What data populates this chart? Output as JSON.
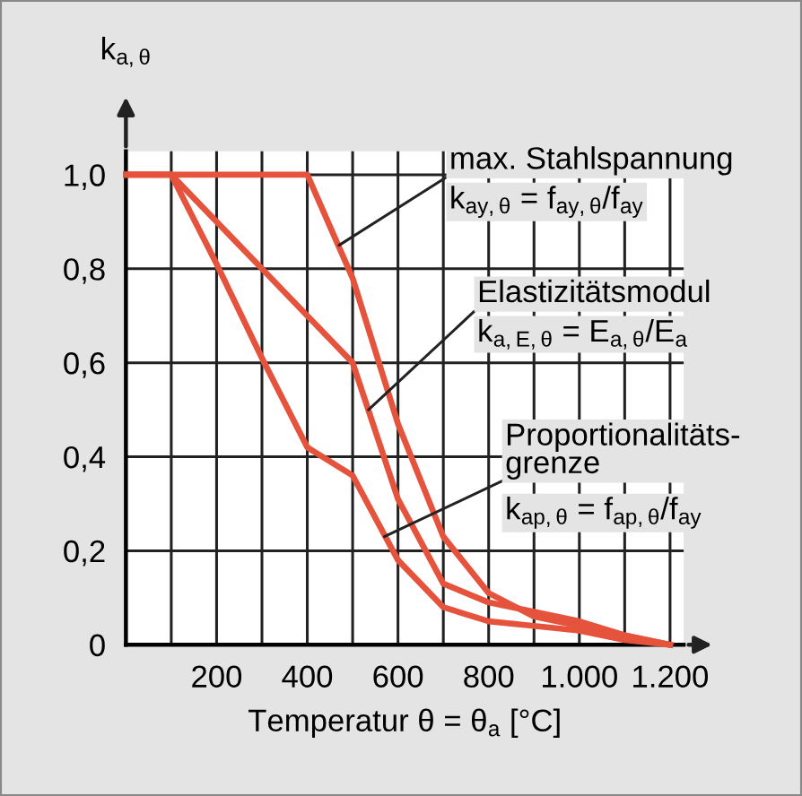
{
  "chart_data": {
    "type": "line",
    "ylabel": "k$_{a,θ}$",
    "xlabel": "Temperatur θ = θ$_{a}$ [°C]",
    "series": [
      {
        "color": "#e5533d",
        "x": [
          0,
          100,
          200,
          300,
          400,
          500,
          600,
          700,
          800,
          900,
          1000,
          1100,
          1200
        ],
        "values": [
          1,
          1,
          1,
          1,
          1,
          0.78,
          0.47,
          0.23,
          0.11,
          0.06,
          0.04,
          0.02,
          0
        ]
      },
      {
        "color": "#e5533d",
        "x": [
          0,
          100,
          200,
          300,
          400,
          500,
          600,
          700,
          800,
          900,
          1000,
          1100,
          1200
        ],
        "values": [
          1,
          1,
          0.9,
          0.8,
          0.7,
          0.6,
          0.31,
          0.13,
          0.09,
          0.07,
          0.05,
          0.02,
          0
        ]
      },
      {
        "color": "#e5533d",
        "x": [
          0,
          100,
          200,
          300,
          400,
          500,
          600,
          700,
          800,
          900,
          1000,
          1100,
          1200
        ],
        "values": [
          1,
          1,
          0.81,
          0.61,
          0.42,
          0.36,
          0.18,
          0.08,
          0.05,
          0.04,
          0.03,
          0.01,
          0
        ]
      }
    ],
    "annotations": [
      {
        "text": "max. Stahlspannung",
        "x": 470,
        "y": 0.85
      },
      "k$_{ay,θ}$ = f$_{ay,θ}$/f$_{ay}$",
      {
        "text": "Elastizitätsmodul",
        "x": 535,
        "y": 0.5
      },
      "k$_{a,E,θ}$ = E$_{a,θ}$/E$_{a}$",
      {
        "text": "Proportionalitäts-\ngrenze",
        "x": 570,
        "y": 0.23
      },
      "k$_{ap,θ}$ = f$_{ap,θ}$/f$_{ay}$"
    ],
    "xlim": [
      0,
      1230
    ],
    "ylim": [
      0,
      1.05
    ],
    "xticks": [
      {
        "value": 100,
        "label": null
      },
      200,
      {
        "value": 300,
        "label": null
      },
      400,
      {
        "value": 500,
        "label": null
      },
      600,
      {
        "value": 700,
        "label": null
      },
      800,
      {
        "value": 900,
        "label": null
      },
      {
        "value": 1000,
        "label": "1.000"
      },
      {
        "value": 1100,
        "label": null
      },
      {
        "value": 1200,
        "label": "1.200"
      }
    ],
    "yticks": [
      {
        "value": 0,
        "label": "0"
      },
      {
        "value": 0.2,
        "label": "0,2"
      },
      {
        "value": 0.4,
        "label": "0,4"
      },
      {
        "value": 0.6,
        "label": "0,6"
      },
      {
        "value": 0.8,
        "label": "0,8"
      },
      {
        "value": 1.0,
        "label": "1,0"
      }
    ],
    "grid": true,
    "marker": "none",
    "line_style": "solid"
  }
}
